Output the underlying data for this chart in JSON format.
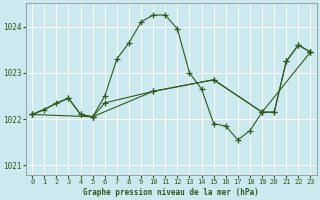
{
  "title": "Graphe pression niveau de la mer (hPa)",
  "bg_color": "#cce9f0",
  "grid_color": "#b0d8e0",
  "line_color": "#2d5a1b",
  "ylim": [
    1020.8,
    1024.5
  ],
  "yticks": [
    1021,
    1022,
    1023,
    1024
  ],
  "xlim": [
    -0.5,
    23.5
  ],
  "xticks": [
    0,
    1,
    2,
    3,
    4,
    5,
    6,
    7,
    8,
    9,
    10,
    11,
    12,
    13,
    14,
    15,
    16,
    17,
    18,
    19,
    20,
    21,
    22,
    23
  ],
  "series1": [
    [
      0,
      1022.1
    ],
    [
      1,
      1022.2
    ],
    [
      2,
      1022.35
    ],
    [
      3,
      1022.45
    ],
    [
      4,
      1022.1
    ],
    [
      5,
      1022.05
    ],
    [
      6,
      1022.5
    ],
    [
      7,
      1023.3
    ],
    [
      8,
      1023.65
    ],
    [
      9,
      1024.1
    ],
    [
      10,
      1024.25
    ],
    [
      11,
      1024.25
    ],
    [
      12,
      1023.95
    ],
    [
      13,
      1023.0
    ],
    [
      14,
      1022.65
    ],
    [
      15,
      1021.9
    ],
    [
      16,
      1021.85
    ],
    [
      17,
      1021.55
    ],
    [
      18,
      1021.75
    ],
    [
      19,
      1022.15
    ],
    [
      20,
      1022.15
    ],
    [
      21,
      1023.25
    ],
    [
      22,
      1023.6
    ],
    [
      23,
      1023.45
    ]
  ],
  "series2": [
    [
      0,
      1022.1
    ],
    [
      3,
      1022.45
    ],
    [
      4,
      1022.1
    ],
    [
      5,
      1022.05
    ],
    [
      6,
      1022.35
    ],
    [
      10,
      1022.6
    ],
    [
      15,
      1022.85
    ],
    [
      19,
      1022.15
    ],
    [
      20,
      1022.15
    ],
    [
      21,
      1023.25
    ],
    [
      22,
      1023.6
    ],
    [
      23,
      1023.45
    ]
  ],
  "series3": [
    [
      0,
      1022.1
    ],
    [
      5,
      1022.05
    ],
    [
      10,
      1022.6
    ],
    [
      15,
      1022.85
    ],
    [
      19,
      1022.15
    ],
    [
      23,
      1023.45
    ]
  ]
}
